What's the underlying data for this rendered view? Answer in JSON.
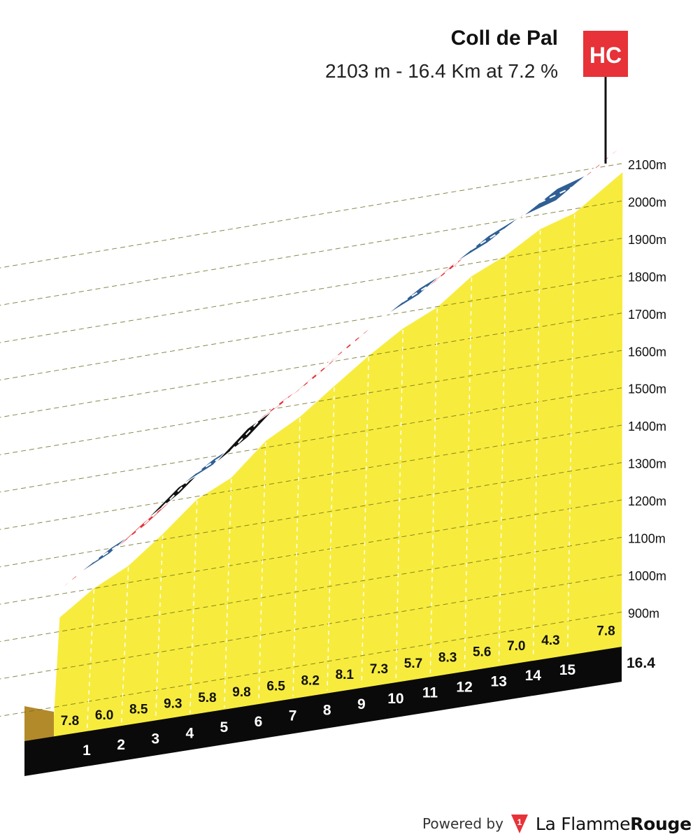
{
  "header": {
    "climb_name": "Coll de Pal",
    "summary": "2103 m - 16.4 Km at 7.2 %"
  },
  "category_flag": {
    "label": "HC",
    "color": "#e63238"
  },
  "footer": {
    "powered_by": "Powered by",
    "brand_part1": "La Flamme",
    "brand_part2": "Rouge",
    "brand_icon_label": "1",
    "brand_icon": "flag-logo-icon"
  },
  "colors": {
    "fill": "#f7ec3d",
    "very_steep": "#111111",
    "steep": "#e63238",
    "moderate": "#2f5f95",
    "base_block": "#b38a2a",
    "km_band": "#0a0a0a",
    "road_line": "#ffffff"
  },
  "chart_data": {
    "type": "area",
    "title": "Coll de Pal",
    "subtitle": "2103 m - 16.4 Km at 7.2 %",
    "x_unit": "km",
    "y_unit": "m",
    "xlim": [
      0,
      16.4
    ],
    "ylim": [
      900,
      2100
    ],
    "y_ticks": [
      900,
      1000,
      1100,
      1200,
      1300,
      1400,
      1500,
      1600,
      1700,
      1800,
      1900,
      2000,
      2100
    ],
    "y_tick_labels": [
      "900m",
      "1000m",
      "1100m",
      "1200m",
      "1300m",
      "1400m",
      "1500m",
      "1600m",
      "1700m",
      "1800m",
      "1900m",
      "2000m",
      "2100m"
    ],
    "grid": true,
    "x_end_label": "16.4",
    "km_labels": [
      "1",
      "2",
      "3",
      "4",
      "5",
      "6",
      "7",
      "8",
      "9",
      "10",
      "11",
      "12",
      "13",
      "14",
      "15"
    ],
    "segments": [
      {
        "km_from": 0,
        "km_to": 1,
        "gradient": 7.8,
        "label": "7.8",
        "difficulty": "steep"
      },
      {
        "km_from": 1,
        "km_to": 2,
        "gradient": 6.0,
        "label": "6.0",
        "difficulty": "moderate"
      },
      {
        "km_from": 2,
        "km_to": 3,
        "gradient": 8.5,
        "label": "8.5",
        "difficulty": "steep"
      },
      {
        "km_from": 3,
        "km_to": 4,
        "gradient": 9.3,
        "label": "9.3",
        "difficulty": "very_steep"
      },
      {
        "km_from": 4,
        "km_to": 5,
        "gradient": 5.8,
        "label": "5.8",
        "difficulty": "moderate"
      },
      {
        "km_from": 5,
        "km_to": 6,
        "gradient": 9.8,
        "label": "9.8",
        "difficulty": "very_steep"
      },
      {
        "km_from": 6,
        "km_to": 7,
        "gradient": 6.5,
        "label": "6.5",
        "difficulty": "steep"
      },
      {
        "km_from": 7,
        "km_to": 8,
        "gradient": 8.2,
        "label": "8.2",
        "difficulty": "steep"
      },
      {
        "km_from": 8,
        "km_to": 9,
        "gradient": 8.1,
        "label": "8.1",
        "difficulty": "steep"
      },
      {
        "km_from": 9,
        "km_to": 10,
        "gradient": 7.3,
        "label": "7.3",
        "difficulty": "steep"
      },
      {
        "km_from": 10,
        "km_to": 11,
        "gradient": 5.7,
        "label": "5.7",
        "difficulty": "moderate"
      },
      {
        "km_from": 11,
        "km_to": 12,
        "gradient": 8.3,
        "label": "8.3",
        "difficulty": "steep"
      },
      {
        "km_from": 12,
        "km_to": 13,
        "gradient": 5.6,
        "label": "5.6",
        "difficulty": "moderate"
      },
      {
        "km_from": 13,
        "km_to": 14,
        "gradient": 7.0,
        "label": "7.0",
        "difficulty": "steep"
      },
      {
        "km_from": 14,
        "km_to": 15,
        "gradient": 4.3,
        "label": "4.3",
        "difficulty": "moderate"
      },
      {
        "km_from": 15,
        "km_to": 16.4,
        "gradient": 7.8,
        "label": "7.8",
        "difficulty": "steep"
      }
    ]
  }
}
